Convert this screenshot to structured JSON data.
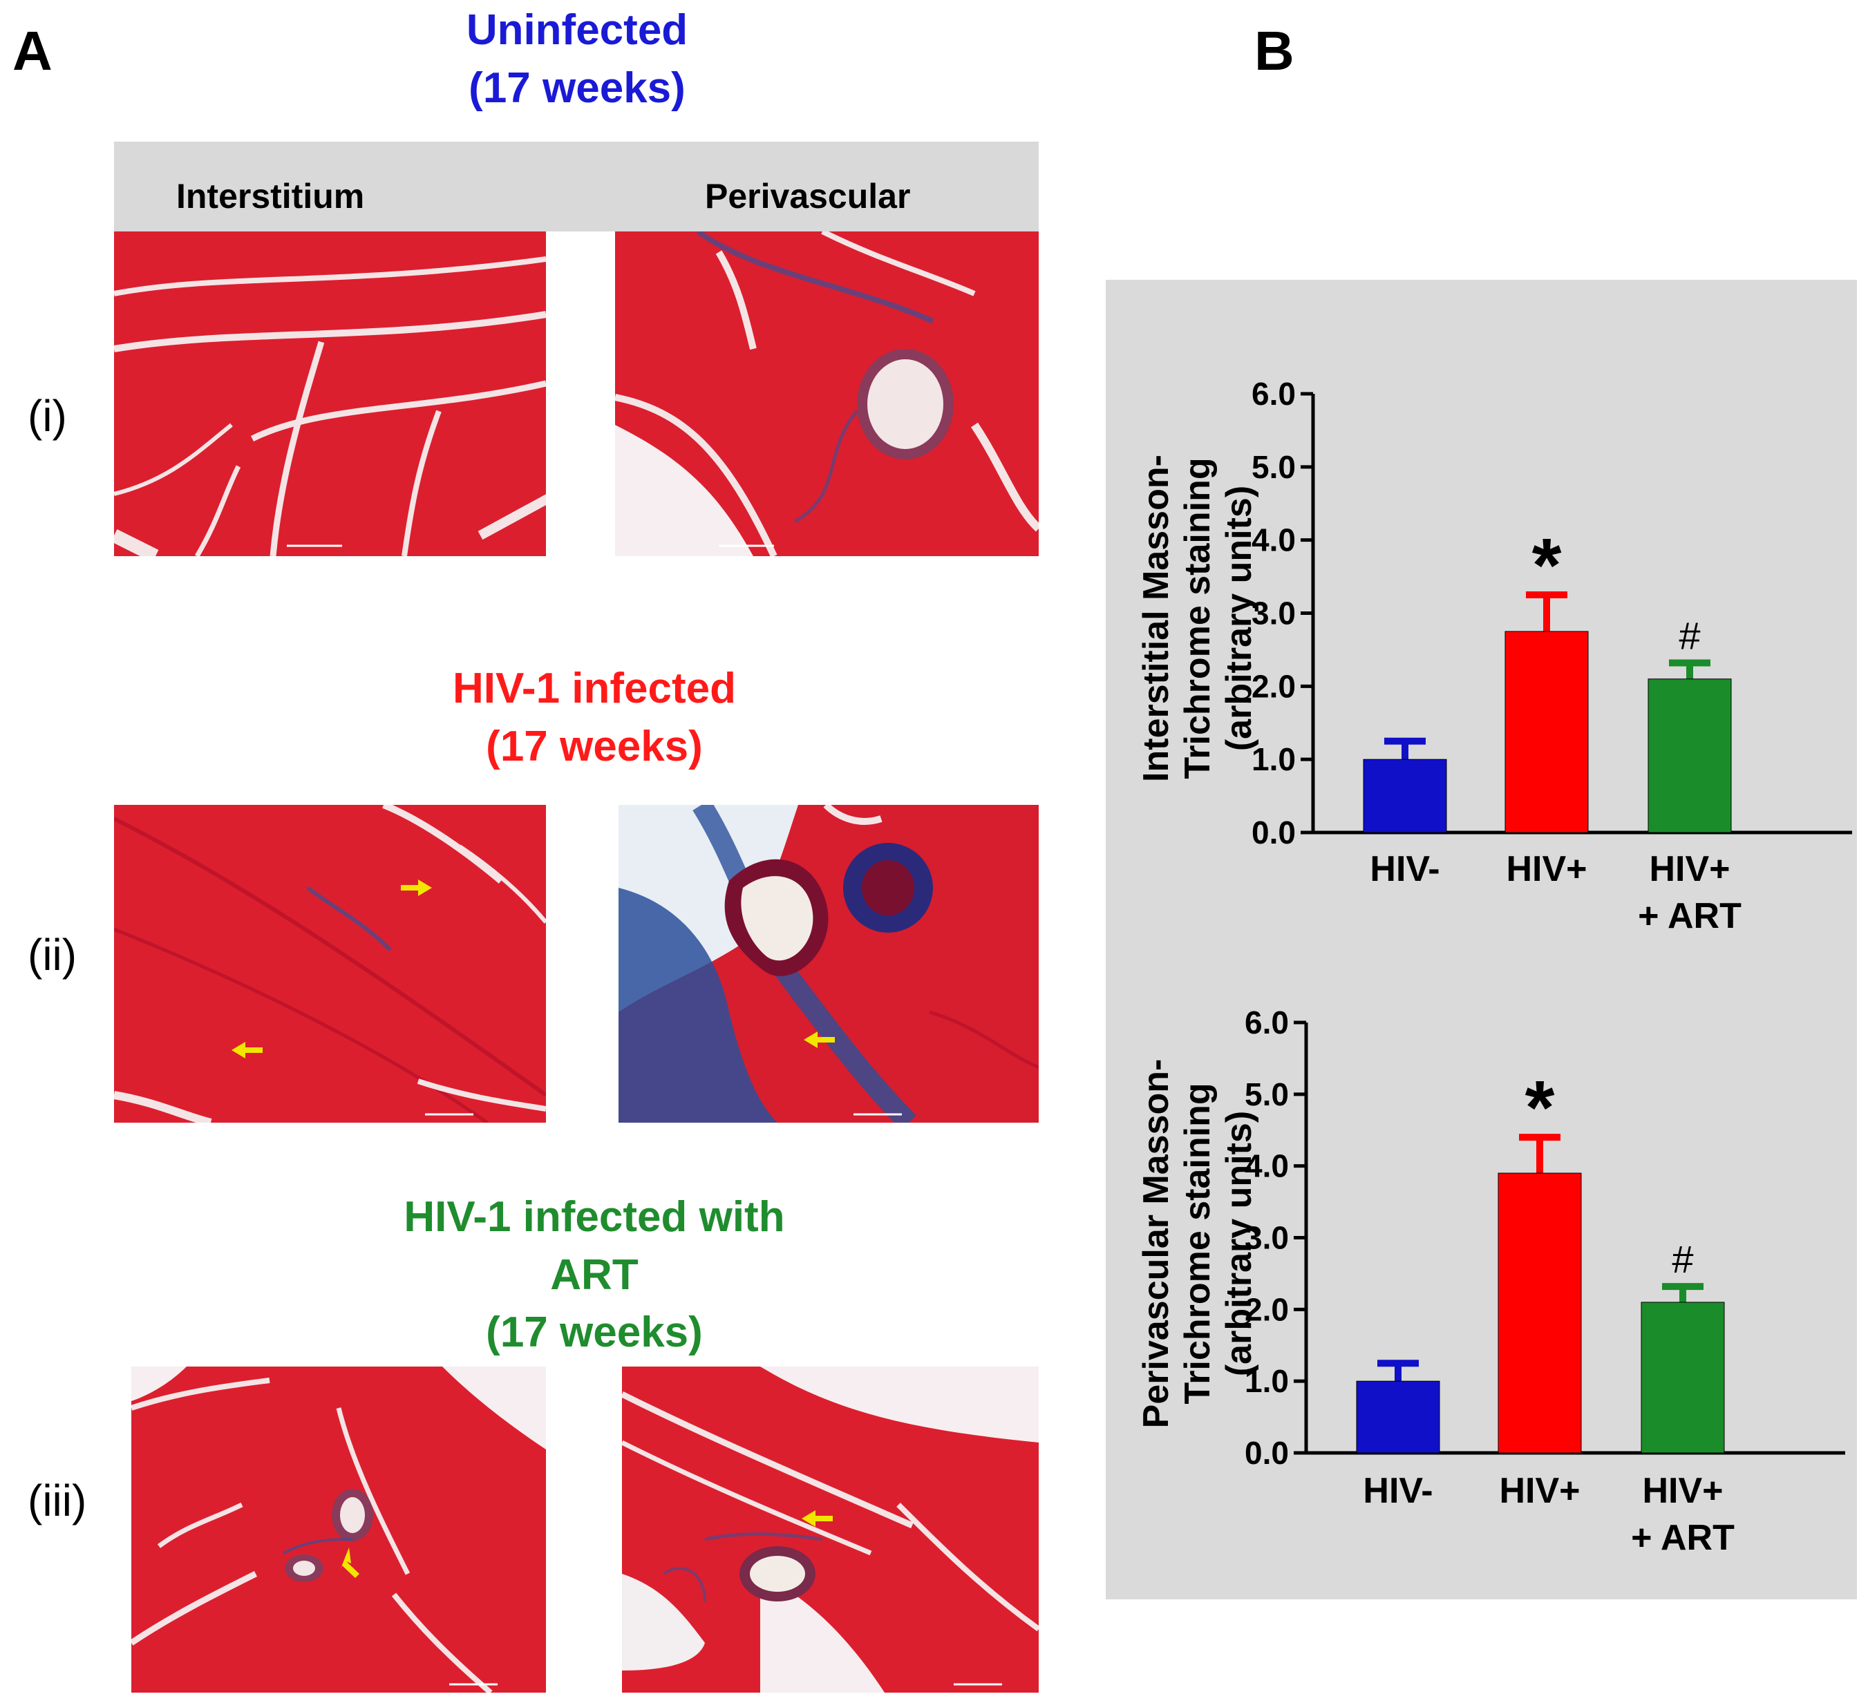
{
  "panel_a": {
    "letter": "A",
    "groups": [
      {
        "title": "Uninfected\n(17 weeks)",
        "color": "#1a1ad6",
        "row_label": "(i)"
      },
      {
        "title": "HIV-1 infected\n(17 weeks)",
        "color": "#ff1a1a",
        "row_label": "(ii)"
      },
      {
        "title": "HIV-1 infected with\nART\n(17 weeks)",
        "color": "#1f8c2e",
        "row_label": "(iii)"
      }
    ],
    "column_headers": {
      "left": "Interstitium",
      "right": "Perivascular"
    },
    "colors": {
      "tissue": "#e02030",
      "fibrosis": "#2a4f9a",
      "arrow": "#f2e600",
      "header_band": "#d9d9d9"
    }
  },
  "panel_b": {
    "letter": "B",
    "background": "#dadada"
  },
  "chart_data": [
    {
      "type": "bar",
      "ylabel": "Interstitial Masson-\nTrichrome staining\n(arbitrary units)",
      "categories": [
        "HIV-",
        "HIV+",
        "HIV+\n+ ART"
      ],
      "values": [
        1.0,
        2.75,
        2.1
      ],
      "errors": [
        0.25,
        0.5,
        0.22
      ],
      "colors": [
        "#1010c8",
        "#ff0000",
        "#1a8c2a"
      ],
      "annotations": [
        "",
        "*",
        "#"
      ],
      "ylim": [
        0,
        6
      ],
      "yticks": [
        "0.0",
        "1.0",
        "2.0",
        "3.0",
        "4.0",
        "5.0",
        "6.0"
      ]
    },
    {
      "type": "bar",
      "ylabel": "Perivascular Masson-\nTrichrome staining\n(arbitrary units)",
      "categories": [
        "HIV-",
        "HIV+",
        "HIV+\n+ ART"
      ],
      "values": [
        1.0,
        3.9,
        2.1
      ],
      "errors": [
        0.25,
        0.5,
        0.22
      ],
      "colors": [
        "#1010c8",
        "#ff0000",
        "#1a8c2a"
      ],
      "annotations": [
        "",
        "*",
        "#"
      ],
      "ylim": [
        0,
        6
      ],
      "yticks": [
        "0.0",
        "1.0",
        "2.0",
        "3.0",
        "4.0",
        "5.0",
        "6.0"
      ]
    }
  ]
}
